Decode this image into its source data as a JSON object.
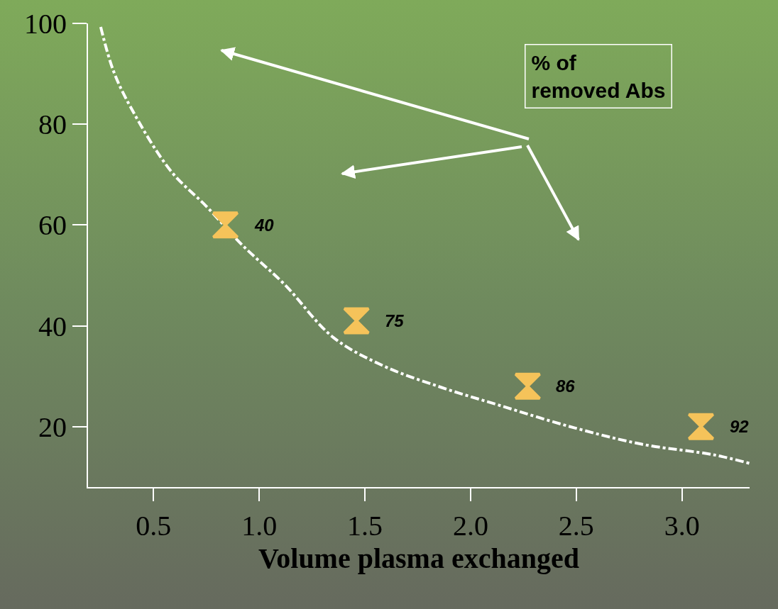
{
  "chart_data": {
    "type": "line",
    "xlabel": "Volume plasma exchanged",
    "xlim": [
      0.19,
      3.32
    ],
    "xticks": [
      {
        "value": 0.5,
        "label": "0.5"
      },
      {
        "value": 1,
        "label": "1.0"
      },
      {
        "value": 1.5,
        "label": "1.5"
      },
      {
        "value": 2,
        "label": "2.0"
      },
      {
        "value": 2.5,
        "label": "2.5"
      },
      {
        "value": 3,
        "label": "3.0"
      }
    ],
    "ylim": [
      8,
      100
    ],
    "yticks": [
      20,
      40,
      60,
      80,
      100
    ],
    "grid": false,
    "series": [
      {
        "color": "#ffffff",
        "line_style": "dashdot",
        "x": [
          0.25,
          0.31,
          0.39,
          0.58,
          0.75,
          0.92,
          1.12,
          1.35,
          1.59,
          1.86,
          2.13,
          2.47,
          2.81,
          3.15,
          3.32
        ],
        "values": [
          99.3,
          90.6,
          83.5,
          70.8,
          63.7,
          56,
          48.2,
          37.7,
          32,
          27.8,
          24.3,
          20,
          16.5,
          14.4,
          12.7
        ]
      },
      {
        "type": "scatter",
        "color": "#f5c35a",
        "x": [
          0.84,
          1.46,
          2.27,
          3.09
        ],
        "values": [
          60,
          41,
          28,
          20
        ]
      }
    ],
    "annotations": [
      "% of\nremoved Abs",
      {
        "text": "40",
        "x": 0.84,
        "y": 60
      },
      {
        "text": "75",
        "x": 1.46,
        "y": 41
      },
      {
        "text": "86",
        "x": 2.27,
        "y": 28
      },
      {
        "text": "92",
        "x": 3.09,
        "y": 20
      }
    ]
  }
}
